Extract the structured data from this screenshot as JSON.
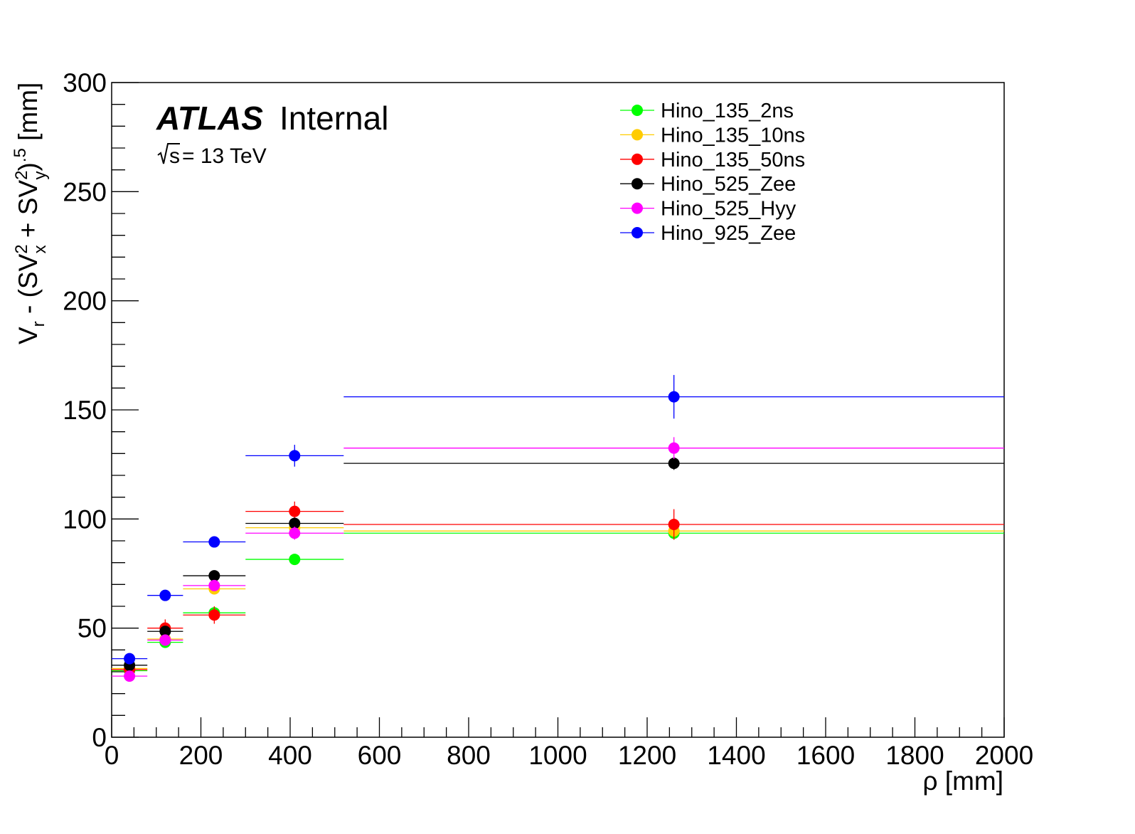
{
  "chart_data": {
    "type": "scatter",
    "title": "",
    "xlabel": "ρ [mm]",
    "ylabel": "V_r - (SV_x^2 + SV_y^2)^.5 [mm]",
    "xlim": [
      0,
      2000
    ],
    "ylim": [
      0,
      300
    ],
    "x_ticks": [
      "0",
      "200",
      "400",
      "600",
      "800",
      "1000",
      "1200",
      "1400",
      "1600",
      "1800",
      "2000"
    ],
    "y_ticks": [
      "0",
      "50",
      "100",
      "150",
      "200",
      "250",
      "300"
    ],
    "grid": false,
    "legend_position": "top-right",
    "bins": [
      [
        0,
        80
      ],
      [
        80,
        160
      ],
      [
        160,
        300
      ],
      [
        300,
        520
      ],
      [
        520,
        2000
      ]
    ],
    "bin_centers": [
      40,
      120,
      230,
      410,
      1260
    ],
    "series": [
      {
        "name": "Hino_135_2ns",
        "color": "#00ff00",
        "values": [
          30.5,
          43.5,
          57,
          81.5,
          93.5
        ],
        "errors": [
          1.5,
          1.5,
          2.5,
          2,
          3
        ]
      },
      {
        "name": "Hino_135_10ns",
        "color": "#ffcc00",
        "values": [
          31.5,
          45,
          68,
          96,
          94.5
        ],
        "errors": [
          1.5,
          1.5,
          2.5,
          2.5,
          3
        ]
      },
      {
        "name": "Hino_135_50ns",
        "color": "#ff0000",
        "values": [
          31,
          50,
          56,
          103.5,
          97.5
        ],
        "errors": [
          2,
          4,
          4,
          4.5,
          7
        ]
      },
      {
        "name": "Hino_525_Zee",
        "color": "#000000",
        "values": [
          33,
          48.5,
          74,
          98,
          125.5
        ],
        "errors": [
          2,
          1.5,
          2,
          2.5,
          3
        ]
      },
      {
        "name": "Hino_525_Hyy",
        "color": "#ff00ff",
        "values": [
          28,
          44.5,
          69.5,
          93.5,
          132.5
        ],
        "errors": [
          1.5,
          1.5,
          2,
          3,
          5
        ]
      },
      {
        "name": "Hino_925_Zee",
        "color": "#0000ff",
        "values": [
          36,
          65,
          89.5,
          129,
          156
        ],
        "errors": [
          1.5,
          1.5,
          2.5,
          5,
          10
        ]
      }
    ]
  },
  "annotations": {
    "atlas": "ATLAS",
    "internal": "Internal",
    "sqrt_s": "s",
    "energy": " = 13 TeV"
  }
}
